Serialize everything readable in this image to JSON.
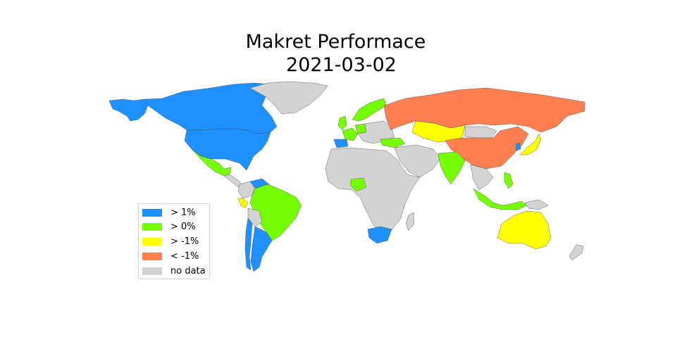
{
  "title_line1": "Makret Performace",
  "title_line2": "2021-03-02",
  "colors": {
    "gt1": "#1e90ff",
    "gt0": "#76ff03",
    "gtm1": "#ffff00",
    "ltm1": "#ff7f50",
    "nodata": "#d3d3d3"
  },
  "legend": [
    {
      "label": "> 1%",
      "color": "#1e90ff"
    },
    {
      "label": "> 0%",
      "color": "#76ff03"
    },
    {
      "label": "> -1%",
      "color": "#ffff00"
    },
    {
      "label": "< -1%",
      "color": "#ff7f50"
    },
    {
      "label": "no data",
      "color": "#d3d3d3"
    }
  ],
  "regions": [
    {
      "name": "alaska",
      "category": "gt1"
    },
    {
      "name": "canada",
      "category": "gt1"
    },
    {
      "name": "usa",
      "category": "gt1"
    },
    {
      "name": "mexico",
      "category": "gt0"
    },
    {
      "name": "greenland",
      "category": "nodata"
    },
    {
      "name": "central-america",
      "category": "nodata"
    },
    {
      "name": "venezuela",
      "category": "gt1"
    },
    {
      "name": "colombia",
      "category": "nodata"
    },
    {
      "name": "peru",
      "category": "gtm1"
    },
    {
      "name": "brazil",
      "category": "gt0"
    },
    {
      "name": "argentina",
      "category": "gt1"
    },
    {
      "name": "chile",
      "category": "gt1"
    },
    {
      "name": "bolivia",
      "category": "nodata"
    },
    {
      "name": "scandinavia",
      "category": "gt0"
    },
    {
      "name": "uk",
      "category": "gt0"
    },
    {
      "name": "france",
      "category": "gt0"
    },
    {
      "name": "spain",
      "category": "gt1"
    },
    {
      "name": "germany",
      "category": "gt0"
    },
    {
      "name": "eastern-europe",
      "category": "nodata"
    },
    {
      "name": "turkey",
      "category": "gt0"
    },
    {
      "name": "russia",
      "category": "ltm1"
    },
    {
      "name": "kazakhstan",
      "category": "gtm1"
    },
    {
      "name": "china",
      "category": "ltm1"
    },
    {
      "name": "mongolia",
      "category": "nodata"
    },
    {
      "name": "japan",
      "category": "gtm1"
    },
    {
      "name": "south-korea",
      "category": "gt1"
    },
    {
      "name": "middle-east",
      "category": "nodata"
    },
    {
      "name": "india",
      "category": "gt0"
    },
    {
      "name": "southeast-asia",
      "category": "nodata"
    },
    {
      "name": "philippines",
      "category": "gt0"
    },
    {
      "name": "indonesia",
      "category": "gt0"
    },
    {
      "name": "africa",
      "category": "nodata"
    },
    {
      "name": "nigeria",
      "category": "gt0"
    },
    {
      "name": "south-africa",
      "category": "gt1"
    },
    {
      "name": "madagascar",
      "category": "nodata"
    },
    {
      "name": "australia",
      "category": "gtm1"
    },
    {
      "name": "new-zealand",
      "category": "nodata"
    },
    {
      "name": "papua",
      "category": "nodata"
    }
  ]
}
